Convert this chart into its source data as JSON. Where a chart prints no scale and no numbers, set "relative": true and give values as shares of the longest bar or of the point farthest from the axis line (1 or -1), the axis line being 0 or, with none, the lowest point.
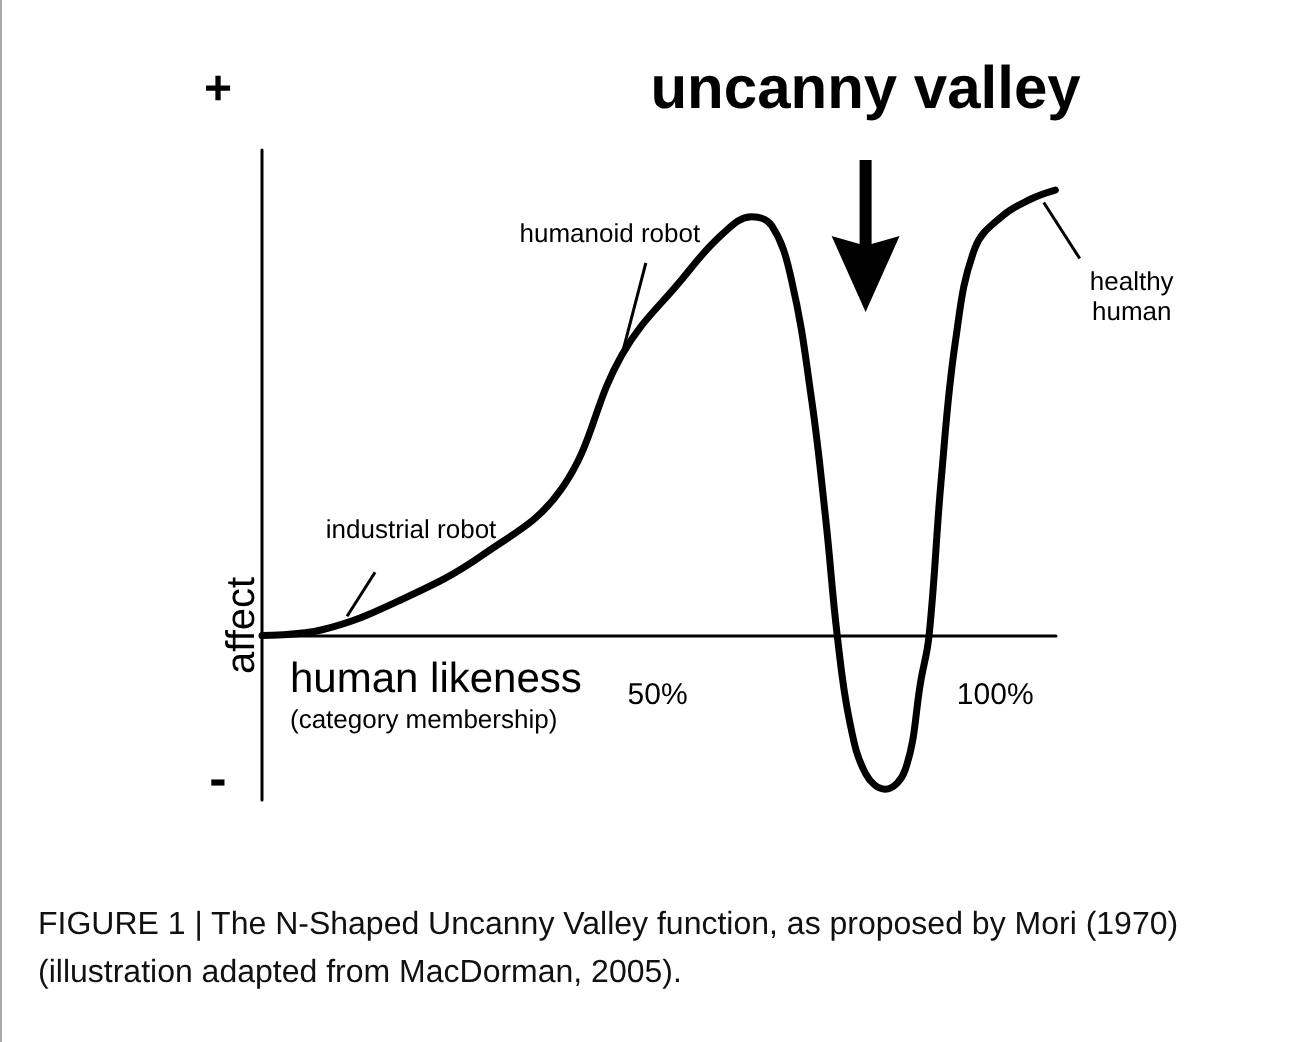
{
  "chart_data": {
    "type": "line",
    "relative": true,
    "xlabel": "human likeness",
    "ylabel": "affect",
    "color": "#000000",
    "marker": "none",
    "line_style": "solid",
    "grid": false,
    "xlim": [
      -8.6,
      109
    ],
    "xticks": [
      {
        "value": 50,
        "label": "50%"
      },
      {
        "value": 100,
        "label": "100%"
      }
    ],
    "x": [
      -8.6,
      0.3,
      12.1,
      24,
      35.8,
      44.7,
      53.6,
      59.5,
      63.9,
      66.9,
      69.8,
      72.8,
      74.9,
      76.6,
      78.4,
      80.8,
      83.7,
      86.7,
      89,
      90.2,
      92,
      94.1,
      97,
      100.9,
      105.3,
      108.9
    ],
    "values": [
      0,
      0.013,
      0.081,
      0.18,
      0.33,
      0.63,
      0.8,
      0.9,
      0.94,
      0.92,
      0.8,
      0.53,
      0.26,
      0,
      -0.19,
      -0.31,
      -0.345,
      -0.3,
      -0.1,
      0,
      0.35,
      0.66,
      0.87,
      0.94,
      0.98,
      1
    ],
    "annotations": [
      "+",
      "-",
      "(category membership)",
      {
        "text": "industrial robot",
        "x": 4,
        "y": 0.03
      },
      {
        "text": "humanoid robot",
        "x": 44.7,
        "y": 0.63
      },
      {
        "text": "healthy human",
        "x": 106,
        "y": 0.99
      },
      "uncanny valley",
      "FIGURE 1 | The N-Shaped Uncanny Valley function, as proposed by Mori (1970) (illustration adapted from MacDorman, 2005)."
    ]
  }
}
